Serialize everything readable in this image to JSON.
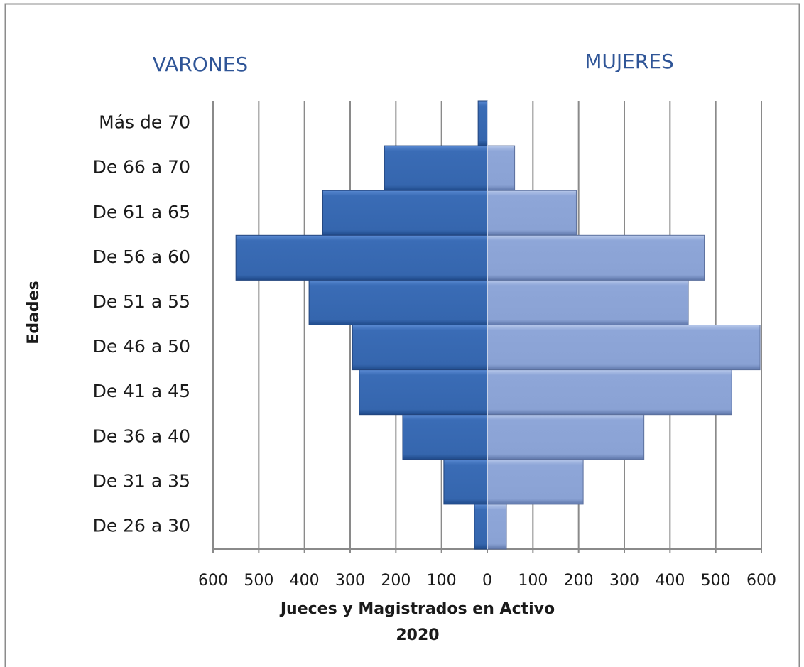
{
  "chart_data": {
    "type": "pyramid",
    "categories": [
      "Más de 70",
      "De 66 a 70",
      "De 61 a 65",
      "De 56 a 60",
      "De 51 a 55",
      "De 46 a 50",
      "De 41 a 45",
      "De 36 a 40",
      "De 31 a 35",
      "De 26 a 30"
    ],
    "series": [
      {
        "name": "VARONES",
        "color": "#3a6cb6",
        "side": "left",
        "values": [
          20,
          225,
          360,
          550,
          390,
          295,
          280,
          185,
          95,
          28
        ]
      },
      {
        "name": "MUJERES",
        "color": "#8ea6d8",
        "side": "right",
        "values": [
          0,
          60,
          195,
          475,
          440,
          597,
          535,
          343,
          210,
          42
        ]
      }
    ],
    "xlim": [
      -600,
      600
    ],
    "xticks": [
      {
        "value": -600,
        "label": "600"
      },
      {
        "value": -500,
        "label": "500"
      },
      {
        "value": -400,
        "label": "400"
      },
      {
        "value": -300,
        "label": "300"
      },
      {
        "value": -200,
        "label": "200"
      },
      {
        "value": -100,
        "label": "100"
      },
      0,
      100,
      200,
      300,
      400,
      500,
      600
    ],
    "xlabel": [
      "Jueces y Magistrados  en Activo",
      "2020"
    ],
    "ylabel": "Edades",
    "grid": true
  }
}
